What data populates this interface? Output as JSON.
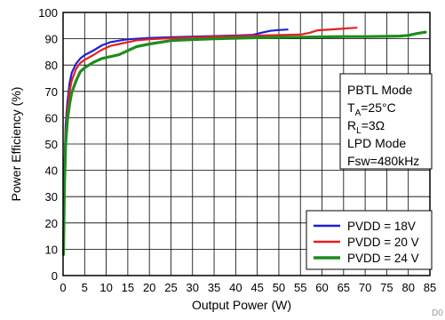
{
  "chart_data": {
    "type": "line",
    "xlabel": "Output Power (W)",
    "ylabel": "Power Efficiency (%)",
    "xlim": [
      0,
      85
    ],
    "ylim": [
      0,
      100
    ],
    "x_ticks": [
      0,
      5,
      10,
      15,
      20,
      25,
      30,
      35,
      40,
      45,
      50,
      55,
      60,
      65,
      70,
      75,
      80,
      85
    ],
    "y_ticks": [
      0,
      10,
      20,
      30,
      40,
      50,
      60,
      70,
      80,
      90,
      100
    ],
    "grid": true,
    "legend_position": "bottom-right",
    "series": [
      {
        "name": "PVDD = 18V",
        "color": "#1f1fd6",
        "points": [
          [
            0.1,
            10
          ],
          [
            0.3,
            40
          ],
          [
            0.6,
            57
          ],
          [
            1,
            66
          ],
          [
            1.5,
            73
          ],
          [
            2,
            77
          ],
          [
            3,
            80.5
          ],
          [
            4,
            82.5
          ],
          [
            5,
            83.8
          ],
          [
            7,
            85.5
          ],
          [
            9,
            87.5
          ],
          [
            11,
            88.7
          ],
          [
            13,
            89.3
          ],
          [
            15,
            89.8
          ],
          [
            20,
            90.3
          ],
          [
            25,
            90.6
          ],
          [
            30,
            90.8
          ],
          [
            35,
            91
          ],
          [
            40,
            91.2
          ],
          [
            44,
            91.5
          ],
          [
            46,
            92.3
          ],
          [
            48,
            93
          ],
          [
            50,
            93.3
          ],
          [
            52,
            93.5
          ]
        ]
      },
      {
        "name": "PVDD = 20 V",
        "color": "#e51f1f",
        "points": [
          [
            0.1,
            9
          ],
          [
            0.3,
            38
          ],
          [
            0.6,
            54
          ],
          [
            1,
            63
          ],
          [
            1.5,
            70
          ],
          [
            2,
            74
          ],
          [
            3,
            78.5
          ],
          [
            4,
            80.8
          ],
          [
            5,
            82
          ],
          [
            7,
            83.8
          ],
          [
            9,
            85.8
          ],
          [
            11,
            87.3
          ],
          [
            13,
            88
          ],
          [
            15,
            88.7
          ],
          [
            17,
            89.4
          ],
          [
            20,
            89.8
          ],
          [
            25,
            90.2
          ],
          [
            30,
            90.5
          ],
          [
            35,
            90.8
          ],
          [
            40,
            91
          ],
          [
            45,
            91.2
          ],
          [
            50,
            91.4
          ],
          [
            55,
            91.6
          ],
          [
            57,
            92.2
          ],
          [
            59,
            93.2
          ],
          [
            63,
            93.6
          ],
          [
            66,
            94
          ],
          [
            68,
            94.2
          ]
        ]
      },
      {
        "name": "PVDD = 24 V",
        "color": "#1e8c1e",
        "points": [
          [
            0.1,
            8
          ],
          [
            0.3,
            33
          ],
          [
            0.6,
            50
          ],
          [
            1,
            59
          ],
          [
            1.5,
            65
          ],
          [
            2,
            69.5
          ],
          [
            3,
            74
          ],
          [
            4,
            77.5
          ],
          [
            5,
            79
          ],
          [
            7,
            81
          ],
          [
            9,
            82.5
          ],
          [
            11,
            83.2
          ],
          [
            13,
            84
          ],
          [
            15,
            85.5
          ],
          [
            17,
            87
          ],
          [
            20,
            88
          ],
          [
            25,
            89.3
          ],
          [
            30,
            89.7
          ],
          [
            35,
            90
          ],
          [
            40,
            90.2
          ],
          [
            45,
            90.4
          ],
          [
            50,
            90.5
          ],
          [
            55,
            90.6
          ],
          [
            60,
            90.7
          ],
          [
            65,
            90.8
          ],
          [
            70,
            90.8
          ],
          [
            75,
            90.9
          ],
          [
            78,
            91
          ],
          [
            80,
            91.3
          ],
          [
            82,
            92
          ],
          [
            84,
            92.5
          ]
        ]
      }
    ],
    "annotation_lines": [
      "PBTL Mode",
      "T_A=25°C",
      "R_L=3Ω",
      "LPD Mode",
      "Fsw=480kHz"
    ],
    "ref_code": "D0"
  }
}
